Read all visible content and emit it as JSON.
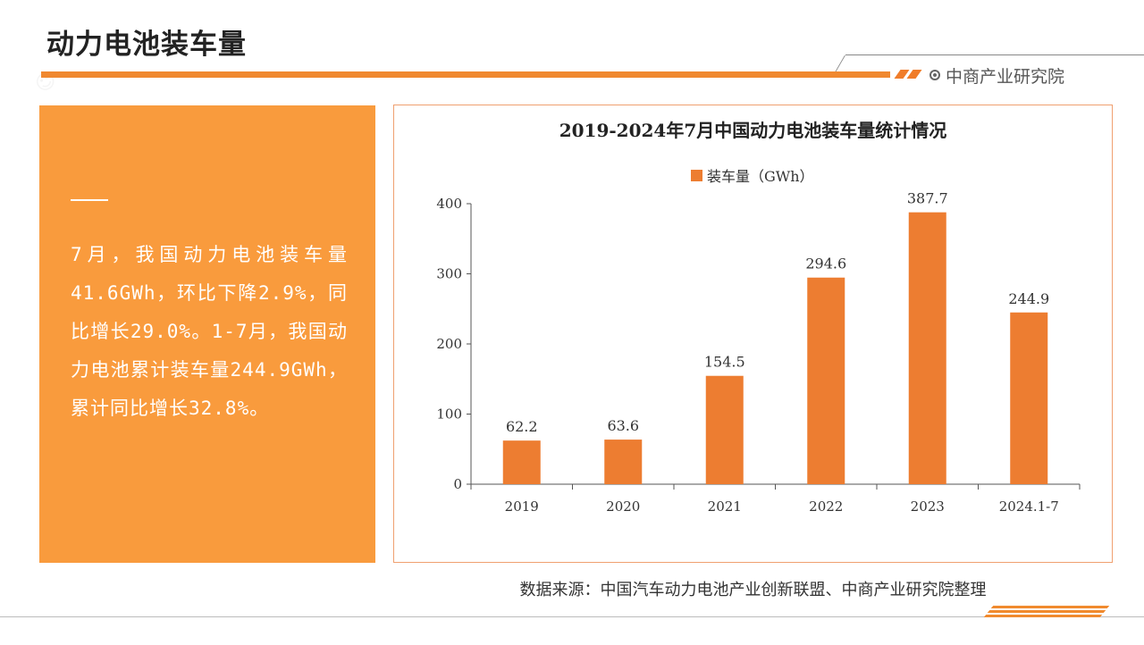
{
  "header": {
    "title": "动力电池装车量",
    "brand": "中商产业研究院"
  },
  "panel": {
    "text": "7月，我国动力电池装车量41.6GWh，环比下降2.9%，同比增长29.0%。1-7月，我国动力电池累计装车量244.9GWh，累计同比增长32.8%。"
  },
  "chart_data": {
    "type": "bar",
    "title": "2019-2024年7月中国动力电池装车量统计情况",
    "categories": [
      "2019",
      "2020",
      "2021",
      "2022",
      "2023",
      "2024.1-7"
    ],
    "series": [
      {
        "name": "装车量（GWh）",
        "values": [
          62.2,
          63.6,
          154.5,
          294.6,
          387.7,
          244.9
        ],
        "color": "#ed7d31"
      }
    ],
    "ylim": [
      0,
      400
    ],
    "yticks": [
      0,
      100,
      200,
      300,
      400
    ],
    "legend_position": "top-center",
    "grid": false,
    "data_labels": true
  },
  "footer": {
    "source": "数据来源：中国汽车动力电池产业创新联盟、中商产业研究院整理"
  },
  "colors": {
    "accent": "#f0882f",
    "panel": "#f99b3d",
    "bar": "#ed7d31"
  }
}
